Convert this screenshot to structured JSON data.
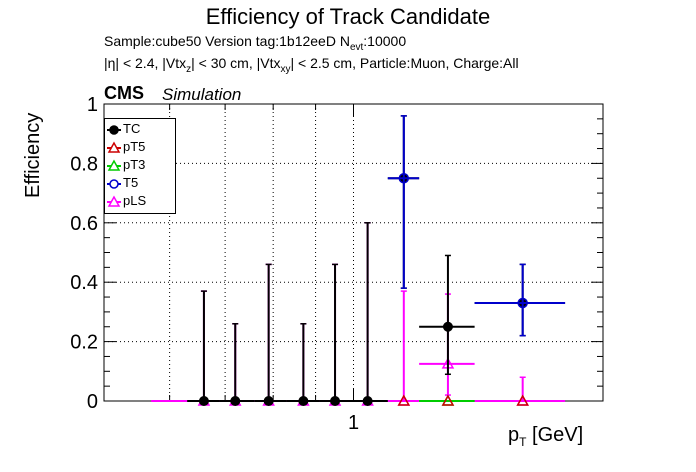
{
  "header": {
    "title": "Efficiency of Track Candidate",
    "line1_prefix": "Sample:cube50   Version tag:1b12eeD  N",
    "line1_sub": "evt",
    "line1_suffix": ":10000",
    "line2_a": "|η| < 2.4, |Vtx",
    "line2_sub1": "z",
    "line2_b": "| < 30 cm, |Vtx",
    "line2_sub2": "xy",
    "line2_c": "| < 2.5 cm, Particle:Muon, Charge:All",
    "cms": "CMS",
    "simulation": "Simulation"
  },
  "chart_data": {
    "type": "scatter",
    "ylabel": "Efficiency",
    "xlabel_main": "p",
    "xlabel_sub": "T",
    "xlabel_unit": " [GeV]",
    "xscale": "log",
    "xlim": [
      0.5,
      2.0
    ],
    "ylim": [
      0,
      1.0
    ],
    "yticks": [
      0,
      0.2,
      0.4,
      0.6,
      0.8,
      1
    ],
    "ytick_labels": [
      "0",
      "0.2",
      "0.4",
      "0.6",
      "0.8",
      "1"
    ],
    "xticks_labeled": [
      1
    ],
    "xtick_labels": [
      "1"
    ],
    "grid": true,
    "legend_position": "top-left",
    "series": [
      {
        "name": "TC",
        "color": "#000000",
        "marker": "circle-filled",
        "points": [
          {
            "x": 0.66,
            "xlo": 0.63,
            "xhi": 0.69,
            "y": 0,
            "ylo": 0,
            "yhi": 0.37
          },
          {
            "x": 0.72,
            "xlo": 0.69,
            "xhi": 0.76,
            "y": 0,
            "ylo": 0,
            "yhi": 0.26
          },
          {
            "x": 0.79,
            "xlo": 0.76,
            "xhi": 0.83,
            "y": 0,
            "ylo": 0,
            "yhi": 0.46
          },
          {
            "x": 0.87,
            "xlo": 0.83,
            "xhi": 0.91,
            "y": 0,
            "ylo": 0,
            "yhi": 0.26
          },
          {
            "x": 0.95,
            "xlo": 0.91,
            "xhi": 1.0,
            "y": 0,
            "ylo": 0,
            "yhi": 0.46
          },
          {
            "x": 1.04,
            "xlo": 1.0,
            "xhi": 1.1,
            "y": 0,
            "ylo": 0,
            "yhi": 0.6
          },
          {
            "x": 1.15,
            "xlo": 1.1,
            "xhi": 1.2,
            "y": 0.75,
            "ylo": 0.38,
            "yhi": 0.96
          },
          {
            "x": 1.3,
            "xlo": 1.2,
            "xhi": 1.4,
            "y": 0.25,
            "ylo": 0.09,
            "yhi": 0.49
          },
          {
            "x": 1.6,
            "xlo": 1.4,
            "xhi": 1.8,
            "y": 0.33,
            "ylo": 0.22,
            "yhi": 0.46
          }
        ]
      },
      {
        "name": "pT5",
        "color": "#cc0000",
        "marker": "triangle-open",
        "points": [
          {
            "x": 1.15,
            "y": 0
          },
          {
            "x": 1.3,
            "y": 0
          },
          {
            "x": 1.6,
            "y": 0
          }
        ]
      },
      {
        "name": "pT3",
        "color": "#00cc00",
        "marker": "triangle-open",
        "points": [
          {
            "x": 1.3,
            "xlo": 1.2,
            "xhi": 1.4,
            "y": 0
          }
        ]
      },
      {
        "name": "T5",
        "color": "#0000cc",
        "marker": "circle-open",
        "points": [
          {
            "x": 1.15,
            "xlo": 1.1,
            "xhi": 1.2,
            "y": 0.75,
            "ylo": 0.38,
            "yhi": 0.96
          },
          {
            "x": 1.6,
            "xlo": 1.4,
            "xhi": 1.8,
            "y": 0.33,
            "ylo": 0.22,
            "yhi": 0.46
          }
        ]
      },
      {
        "name": "pLS",
        "color": "#ff00ff",
        "marker": "triangle-open",
        "points": [
          {
            "x": 0.66,
            "xlo": 0.57,
            "xhi": 0.69,
            "y": 0,
            "ylo": 0,
            "yhi": 0.37
          },
          {
            "x": 0.72,
            "xlo": 0.69,
            "xhi": 0.76,
            "y": 0,
            "ylo": 0,
            "yhi": 0.26
          },
          {
            "x": 0.79,
            "xlo": 0.76,
            "xhi": 0.83,
            "y": 0,
            "ylo": 0,
            "yhi": 0.46
          },
          {
            "x": 0.87,
            "xlo": 0.83,
            "xhi": 0.91,
            "y": 0,
            "ylo": 0,
            "yhi": 0.26
          },
          {
            "x": 0.95,
            "xlo": 0.91,
            "xhi": 1.0,
            "y": 0,
            "ylo": 0,
            "yhi": 0.46
          },
          {
            "x": 1.04,
            "xlo": 1.0,
            "xhi": 1.1,
            "y": 0,
            "ylo": 0,
            "yhi": 0.6
          },
          {
            "x": 1.15,
            "xlo": 1.1,
            "xhi": 1.2,
            "y": 0,
            "ylo": 0,
            "yhi": 0.37
          },
          {
            "x": 1.3,
            "xlo": 1.2,
            "xhi": 1.4,
            "y": 0.125,
            "ylo": 0.02,
            "yhi": 0.36
          },
          {
            "x": 1.6,
            "xlo": 1.4,
            "xhi": 1.8,
            "y": 0,
            "ylo": 0,
            "yhi": 0.08
          }
        ]
      }
    ]
  }
}
